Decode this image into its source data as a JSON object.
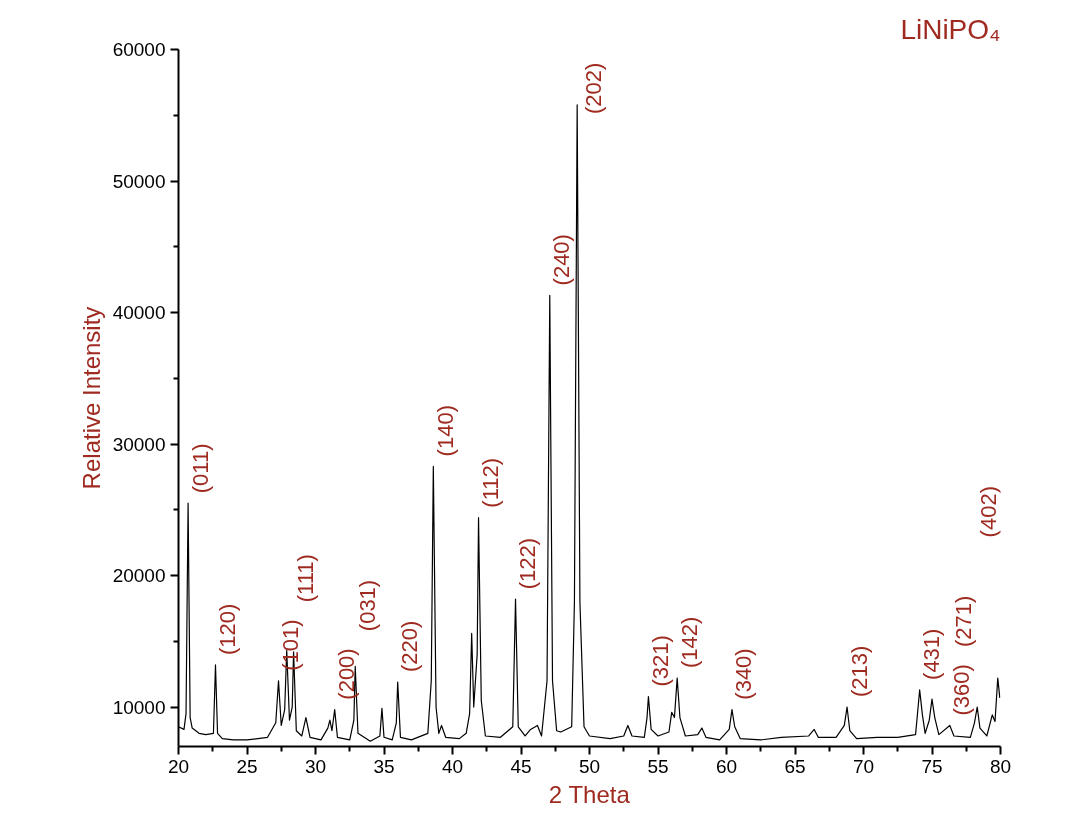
{
  "chart_data": {
    "type": "line",
    "title": "LiNiPO₄",
    "xlabel": "2 Theta",
    "ylabel": "Relative Intensity",
    "series": [
      {
        "color": "#000000",
        "x": [
          20.0,
          20.4,
          20.55,
          20.7,
          20.85,
          21.0,
          21.5,
          22.0,
          22.55,
          22.7,
          22.85,
          23.2,
          24.0,
          25.0,
          26.5,
          27.1,
          27.3,
          27.5,
          27.75,
          27.9,
          28.1,
          28.3,
          28.4,
          28.6,
          29.0,
          29.3,
          29.6,
          30.4,
          30.9,
          31.05,
          31.2,
          31.4,
          31.6,
          32.5,
          32.8,
          32.9,
          33.1,
          34.0,
          34.7,
          34.85,
          35.0,
          35.6,
          35.9,
          36.0,
          36.2,
          37.0,
          38.2,
          38.45,
          38.6,
          38.8,
          39.0,
          39.2,
          39.5,
          40.5,
          41.0,
          41.25,
          41.4,
          41.55,
          41.8,
          41.9,
          42.1,
          42.4,
          43.5,
          44.4,
          44.6,
          44.8,
          45.3,
          45.7,
          46.2,
          46.5,
          46.9,
          47.1,
          47.3,
          47.6,
          47.9,
          48.7,
          48.9,
          49.1,
          49.3,
          49.6,
          50.0,
          51.5,
          52.5,
          52.8,
          53.1,
          54.0,
          54.2,
          54.3,
          54.5,
          55.0,
          55.8,
          56.0,
          56.2,
          56.4,
          56.6,
          57.0,
          57.9,
          58.2,
          58.5,
          59.5,
          60.2,
          60.4,
          60.6,
          61.0,
          62.5,
          64.0,
          66.0,
          66.4,
          66.7,
          68.0,
          68.6,
          68.8,
          69.0,
          69.5,
          71.0,
          72.5,
          73.8,
          74.1,
          74.3,
          74.5,
          74.8,
          75.0,
          75.2,
          75.5,
          76.3,
          76.6,
          77.8,
          78.1,
          78.3,
          78.5,
          79.0,
          79.4,
          79.6,
          79.8,
          79.95
        ],
        "values": [
          8500,
          8300,
          9500,
          25500,
          9200,
          8400,
          8000,
          7900,
          8000,
          13200,
          8000,
          7600,
          7500,
          7500,
          7700,
          8800,
          12000,
          8600,
          9800,
          14300,
          9000,
          10000,
          14200,
          8200,
          7800,
          9200,
          7700,
          7500,
          8400,
          9000,
          8200,
          9800,
          7700,
          7500,
          9000,
          13100,
          8000,
          7400,
          7800,
          9900,
          7700,
          7500,
          8800,
          11900,
          7700,
          7500,
          8000,
          12000,
          28300,
          10000,
          8000,
          8600,
          7700,
          7600,
          8000,
          9500,
          15600,
          10000,
          14000,
          24400,
          10500,
          7800,
          7700,
          8500,
          18200,
          8500,
          7800,
          8300,
          8600,
          7800,
          12000,
          41300,
          12000,
          8200,
          8100,
          8500,
          18000,
          55800,
          18000,
          8500,
          7800,
          7600,
          7800,
          8600,
          7800,
          7700,
          9200,
          10800,
          8300,
          7800,
          8100,
          9600,
          9200,
          12200,
          9200,
          7800,
          7900,
          8400,
          7700,
          7500,
          8300,
          9800,
          8500,
          7600,
          7500,
          7700,
          7800,
          8300,
          7700,
          7700,
          8600,
          10000,
          8200,
          7600,
          7700,
          7700,
          7900,
          11300,
          9400,
          8000,
          9000,
          10600,
          9200,
          7900,
          8600,
          7800,
          7700,
          8800,
          10000,
          8400,
          7800,
          9400,
          8900,
          12200,
          10700
        ]
      }
    ],
    "xlim": [
      20,
      80
    ],
    "ylim": [
      7000,
      60000
    ],
    "xticks": [
      20,
      {
        "value": 22.5,
        "label": null
      },
      25,
      {
        "value": 27.5,
        "label": null
      },
      30,
      {
        "value": 32.5,
        "label": null
      },
      35,
      {
        "value": 37.5,
        "label": null
      },
      40,
      {
        "value": 42.5,
        "label": null
      },
      45,
      {
        "value": 47.5,
        "label": null
      },
      50,
      {
        "value": 52.5,
        "label": null
      },
      55,
      {
        "value": 57.5,
        "label": null
      },
      60,
      {
        "value": 62.5,
        "label": null
      },
      65,
      {
        "value": 67.5,
        "label": null
      },
      70,
      {
        "value": 72.5,
        "label": null
      },
      75,
      {
        "value": 77.5,
        "label": null
      },
      80
    ],
    "yticks": [
      10000,
      {
        "value": 15000,
        "label": null
      },
      20000,
      {
        "value": 25000,
        "label": null
      },
      30000,
      {
        "value": 35000,
        "label": null
      },
      40000,
      {
        "value": 45000,
        "label": null
      },
      50000,
      {
        "value": 55000,
        "label": null
      },
      60000
    ],
    "grid": false,
    "marker": "none",
    "line_style": "solid",
    "annotations": [
      {
        "text": "(011)",
        "x": 20.7,
        "y": 25500
      },
      {
        "text": "(120)",
        "x": 22.7,
        "y": 13200
      },
      {
        "text": "(101)",
        "x": 27.3,
        "y": 12000
      },
      {
        "text": "(111)",
        "x": 28.4,
        "y": 14200
      },
      {
        "text": "(200)",
        "x": 31.4,
        "y": 9800
      },
      {
        "text": "(031)",
        "x": 32.9,
        "y": 13100
      },
      {
        "text": "(220)",
        "x": 36.0,
        "y": 11900
      },
      {
        "text": "(140)",
        "x": 38.6,
        "y": 28300
      },
      {
        "text": "(112)",
        "x": 41.9,
        "y": 24400
      },
      {
        "text": "(122)",
        "x": 44.6,
        "y": 18200
      },
      {
        "text": "(240)",
        "x": 47.1,
        "y": 41300
      },
      {
        "text": "(202)",
        "x": 49.1,
        "y": 55800
      },
      {
        "text": "(321)",
        "x": 54.3,
        "y": 10800
      },
      {
        "text": "(142)",
        "x": 56.4,
        "y": 12200
      },
      {
        "text": "(340)",
        "x": 60.4,
        "y": 9800
      },
      {
        "text": "(213)",
        "x": 68.8,
        "y": 10000
      },
      {
        "text": "(431)",
        "x": 74.1,
        "y": 11300
      },
      {
        "text": "(360)",
        "x": 76.3,
        "y": 8600
      },
      {
        "text": "(271)",
        "x": 78.3,
        "y": 10000
      },
      "(402)"
    ]
  }
}
